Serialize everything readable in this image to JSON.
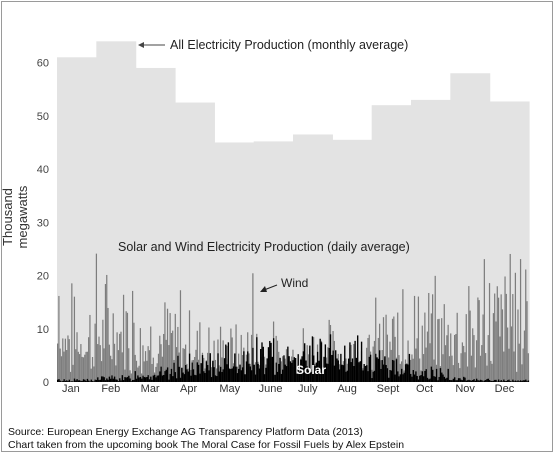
{
  "chart_data": {
    "type": "bar",
    "ylabel": "Thousand megawatts",
    "ylim": [
      0,
      65
    ],
    "yticks": [
      0,
      10,
      20,
      30,
      40,
      50,
      60
    ],
    "months": [
      "Jan",
      "Feb",
      "Mar",
      "Apr",
      "May",
      "June",
      "July",
      "Aug",
      "Sept",
      "Oct",
      "Nov",
      "Dec"
    ],
    "series": [
      {
        "name": "All Electricity Production (monthly average)",
        "type": "bar",
        "color": "#e3e3e3",
        "values": [
          61,
          64,
          59,
          52.5,
          45,
          45.2,
          46.5,
          45.5,
          52,
          53,
          58,
          52.7
        ]
      },
      {
        "name": "Wind",
        "type": "bar-daily",
        "color": "#7d7d7d",
        "seed": 7,
        "monthly_mean": [
          8,
          9,
          7,
          5.5,
          4.5,
          3.8,
          4.2,
          3.8,
          6,
          8,
          9,
          10
        ],
        "peaks": [
          [
            1,
            16
          ],
          [
            30,
            24
          ],
          [
            58,
            17
          ],
          [
            95,
            17
          ],
          [
            151,
            18.5
          ],
          [
            267,
            17
          ],
          [
            330,
            23
          ],
          [
            350,
            24
          ],
          [
            358,
            23
          ],
          [
            362,
            21
          ]
        ]
      },
      {
        "name": "Solar",
        "type": "bar-daily",
        "color": "#000000",
        "seed": 13,
        "monthly_mean": [
          0.4,
          0.8,
          1.8,
          3,
          4.5,
          5.5,
          5.8,
          5,
          3.5,
          1.8,
          0.6,
          0.3
        ]
      }
    ],
    "annotations": {
      "all_label": "All Electricity Production (monthly average)",
      "daily_label": "Solar and Wind Electricity Production (daily average)",
      "wind_label": "Wind",
      "solar_label": "Solar"
    }
  },
  "source": {
    "line1": "Source: European Energy Exchange AG Transparency Platform Data (2013)",
    "line2": "Chart taken from the upcoming book The Moral Case for Fossil Fuels by Alex Epstein"
  }
}
